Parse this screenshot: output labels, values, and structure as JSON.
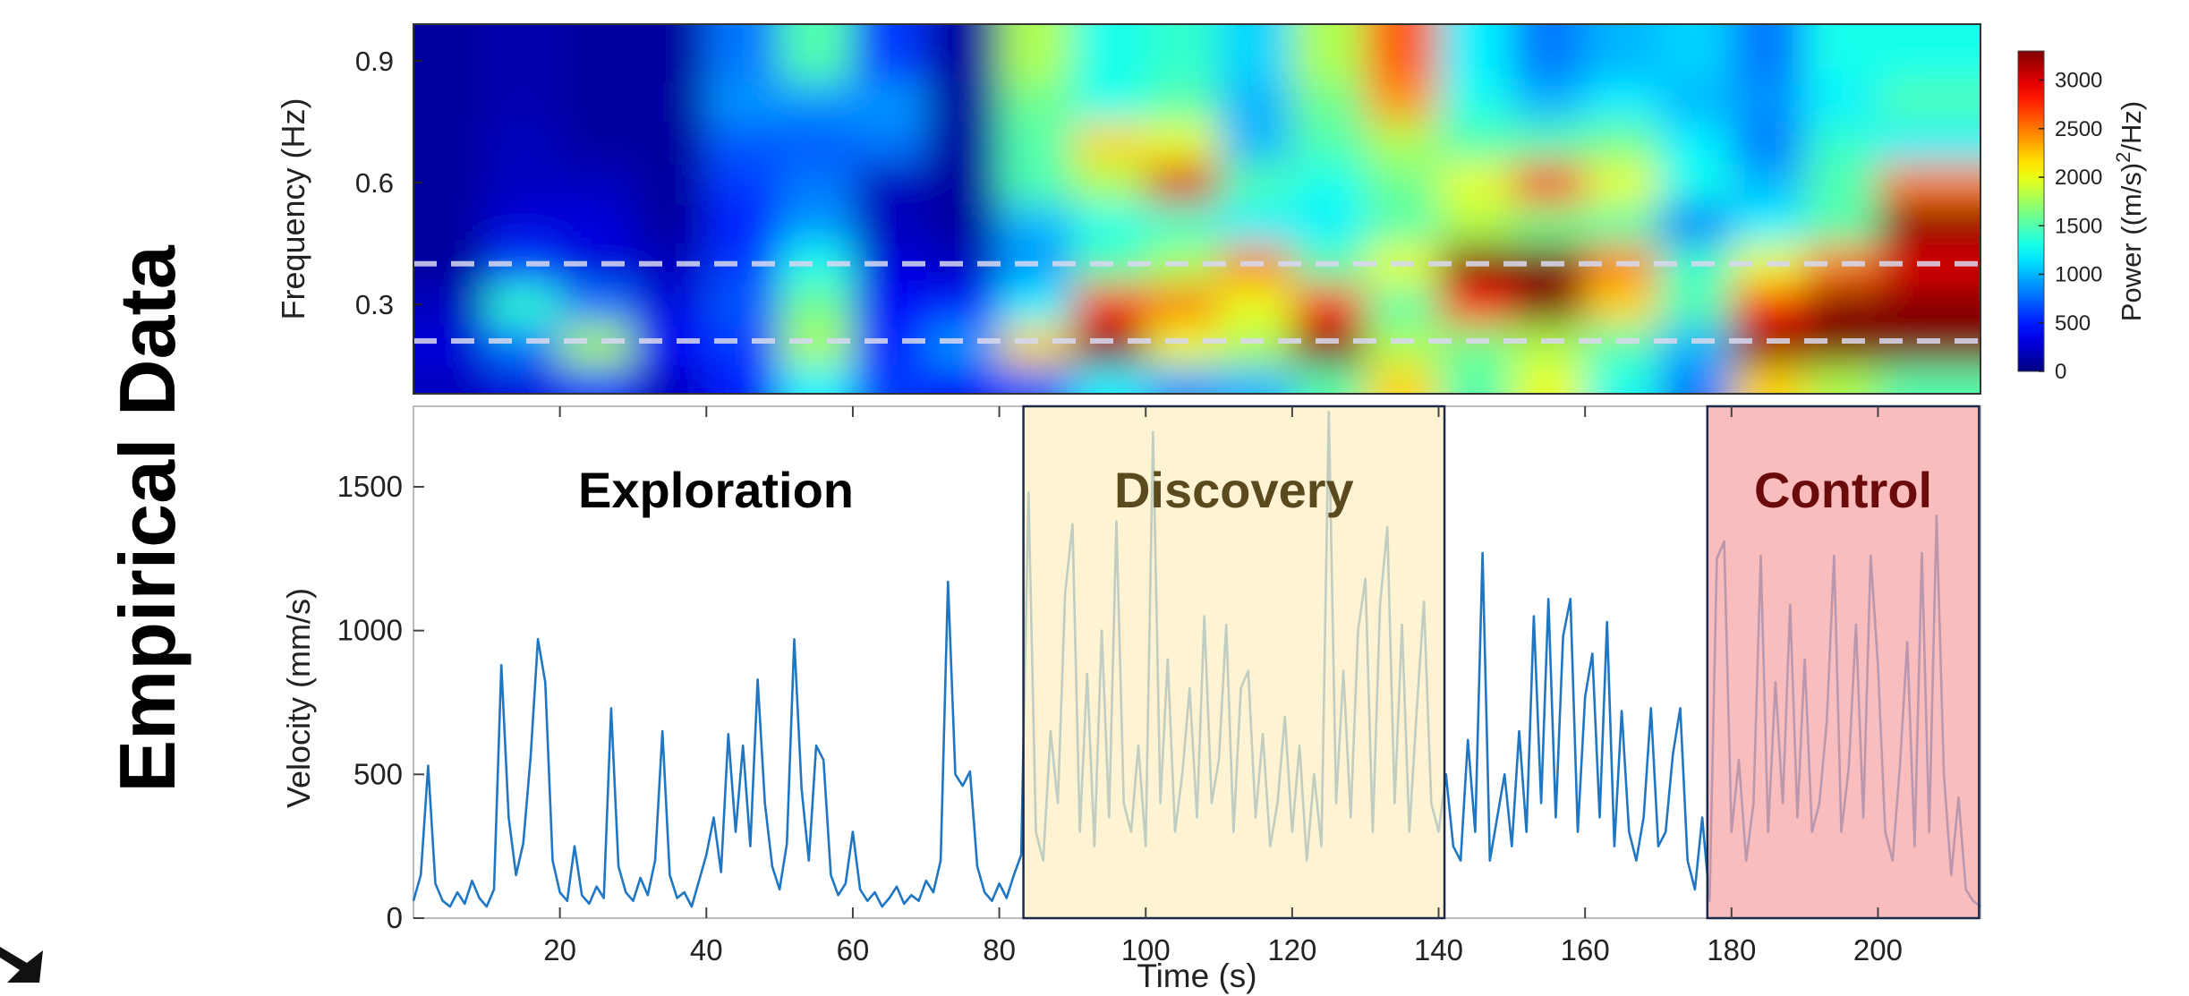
{
  "side_label": "Empirical Data",
  "chart_data": [
    {
      "type": "heatmap",
      "y_label": "Frequency (Hz)",
      "x": [
        5,
        15,
        25,
        35,
        45,
        55,
        65,
        75,
        85,
        95,
        105,
        115,
        125,
        135,
        145,
        155,
        165,
        175,
        185,
        195,
        205
      ],
      "y": [
        0.1,
        0.2,
        0.3,
        0.4,
        0.5,
        0.6,
        0.7,
        0.8,
        0.9
      ],
      "z": [
        [
          200,
          300,
          600,
          200,
          500,
          1200,
          600,
          400,
          700,
          1200,
          900,
          1000,
          1500,
          2200,
          1500,
          2000,
          1300,
          800,
          2200,
          1800,
          1500
        ],
        [
          300,
          800,
          1800,
          400,
          600,
          1800,
          500,
          900,
          2200,
          3300,
          2000,
          1800,
          3300,
          1800,
          1600,
          1800,
          1500,
          1000,
          3300,
          3300,
          3300
        ],
        [
          200,
          1400,
          800,
          300,
          700,
          1600,
          400,
          500,
          1200,
          2800,
          2500,
          2000,
          2800,
          1500,
          2800,
          3300,
          2200,
          1500,
          2800,
          3300,
          3300
        ],
        [
          100,
          600,
          300,
          200,
          600,
          1300,
          300,
          200,
          900,
          1500,
          1800,
          2500,
          1500,
          2000,
          3300,
          3300,
          2500,
          1400,
          2000,
          2500,
          3000
        ],
        [
          100,
          300,
          300,
          100,
          500,
          900,
          200,
          100,
          1000,
          1300,
          1400,
          1200,
          1200,
          1500,
          1800,
          1600,
          1500,
          800,
          1200,
          1500,
          3300
        ],
        [
          100,
          200,
          200,
          100,
          600,
          800,
          200,
          100,
          1500,
          1800,
          3000,
          1500,
          1300,
          1600,
          2000,
          2800,
          2000,
          1300,
          1000,
          1500,
          2500
        ],
        [
          100,
          200,
          100,
          100,
          700,
          700,
          800,
          100,
          1500,
          2200,
          2000,
          1000,
          1500,
          1800,
          1500,
          1500,
          1600,
          1200,
          800,
          1400,
          1200
        ],
        [
          100,
          150,
          100,
          100,
          900,
          900,
          900,
          100,
          1600,
          1300,
          1500,
          1000,
          1600,
          2400,
          1300,
          1000,
          1200,
          1000,
          900,
          1200,
          1500
        ],
        [
          100,
          150,
          100,
          100,
          800,
          1500,
          600,
          100,
          1800,
          1300,
          1400,
          1100,
          1800,
          2600,
          1200,
          800,
          1000,
          1100,
          800,
          1300,
          1300
        ]
      ],
      "xlim": [
        0,
        214
      ],
      "ylim": [
        0.08,
        0.99
      ],
      "yticks": [
        0.3,
        0.6,
        0.9
      ],
      "hlines": [
        0.4,
        0.21
      ],
      "colormap": "jet",
      "clim": [
        0,
        3300
      ],
      "cticks": [
        0,
        500,
        1000,
        1500,
        2000,
        2500,
        3000
      ],
      "colorbar_label": [
        "Power ((m/s)",
        "2",
        "/Hz)"
      ]
    },
    {
      "type": "line",
      "x_label": "Time (s)",
      "y_label": "Velocity (mm/s)",
      "x": [
        0,
        1,
        2,
        3,
        4,
        5,
        6,
        7,
        8,
        9,
        10,
        11,
        12,
        13,
        14,
        15,
        16,
        17,
        18,
        19,
        20,
        21,
        22,
        23,
        24,
        25,
        26,
        27,
        28,
        29,
        30,
        31,
        32,
        33,
        34,
        35,
        36,
        37,
        38,
        39,
        40,
        41,
        42,
        43,
        44,
        45,
        46,
        47,
        48,
        49,
        50,
        51,
        52,
        53,
        54,
        55,
        56,
        57,
        58,
        59,
        60,
        61,
        62,
        63,
        64,
        65,
        66,
        67,
        68,
        69,
        70,
        71,
        72,
        73,
        74,
        75,
        76,
        77,
        78,
        79,
        80,
        81,
        82,
        83,
        84,
        85,
        86,
        87,
        88,
        89,
        90,
        91,
        92,
        93,
        94,
        95,
        96,
        97,
        98,
        99,
        100,
        101,
        102,
        103,
        104,
        105,
        106,
        107,
        108,
        109,
        110,
        111,
        112,
        113,
        114,
        115,
        116,
        117,
        118,
        119,
        120,
        121,
        122,
        123,
        124,
        125,
        126,
        127,
        128,
        129,
        130,
        131,
        132,
        133,
        134,
        135,
        136,
        137,
        138,
        139,
        140,
        141,
        142,
        143,
        144,
        145,
        146,
        147,
        148,
        149,
        150,
        151,
        152,
        153,
        154,
        155,
        156,
        157,
        158,
        159,
        160,
        161,
        162,
        163,
        164,
        165,
        166,
        167,
        168,
        169,
        170,
        171,
        172,
        173,
        174,
        175,
        176,
        177,
        178,
        179,
        180,
        181,
        182,
        183,
        184,
        185,
        186,
        187,
        188,
        189,
        190,
        191,
        192,
        193,
        194,
        195,
        196,
        197,
        198,
        199,
        200,
        201,
        202,
        203,
        204,
        205,
        206,
        207,
        208,
        209,
        210,
        211,
        212,
        213,
        214
      ],
      "series": [
        {
          "color": "#1f77c4",
          "values": [
            60,
            150,
            530,
            120,
            60,
            40,
            90,
            50,
            130,
            70,
            40,
            100,
            880,
            350,
            150,
            260,
            560,
            970,
            820,
            200,
            90,
            60,
            250,
            80,
            50,
            110,
            70,
            730,
            180,
            90,
            60,
            140,
            80,
            200,
            650,
            150,
            70,
            90,
            40,
            130,
            220,
            350,
            160,
            640,
            300,
            600,
            250,
            830,
            400,
            180,
            100,
            260,
            970,
            450,
            200,
            600,
            550,
            150,
            80,
            120,
            300,
            100,
            60,
            90,
            40,
            70,
            110,
            50,
            80,
            60,
            130,
            90,
            200,
            1170,
            500,
            460,
            510,
            180,
            90,
            60,
            120,
            70,
            150,
            220,
            1480,
            300,
            200,
            650,
            400,
            1130,
            1370,
            300,
            850,
            250,
            1000,
            350,
            1380,
            400,
            300,
            600,
            250,
            1690,
            400,
            900,
            300,
            500,
            800,
            350,
            1050,
            400,
            550,
            1020,
            300,
            800,
            860,
            350,
            640,
            250,
            400,
            700,
            300,
            600,
            200,
            500,
            250,
            1760,
            400,
            860,
            350,
            1000,
            1180,
            300,
            1090,
            1360,
            400,
            1020,
            300,
            720,
            1100,
            400,
            300,
            500,
            250,
            200,
            620,
            300,
            1270,
            200,
            350,
            500,
            250,
            650,
            300,
            1050,
            400,
            1110,
            350,
            980,
            1110,
            300,
            770,
            920,
            350,
            1030,
            250,
            720,
            300,
            200,
            350,
            730,
            250,
            300,
            570,
            730,
            200,
            100,
            350,
            60,
            1250,
            1310,
            300,
            550,
            200,
            400,
            1260,
            300,
            820,
            400,
            1090,
            350,
            900,
            300,
            400,
            680,
            1260,
            300,
            520,
            1020,
            350,
            1260,
            880,
            300,
            200,
            530,
            960,
            250,
            1270,
            300,
            1400,
            500,
            150,
            420,
            100,
            60,
            40
          ]
        }
      ],
      "xlim": [
        0,
        214
      ],
      "ylim": [
        0,
        1780
      ],
      "xticks": [
        20,
        40,
        60,
        80,
        100,
        120,
        140,
        160,
        180,
        200
      ],
      "yticks": [
        0,
        500,
        1000,
        1500
      ],
      "regions": [
        {
          "label": "Exploration",
          "label_color": "#000000"
        },
        {
          "label": "Discovery",
          "start": 83.3,
          "end": 140.8,
          "color": "#fdeec0",
          "label_color": "#5a4a1e"
        },
        {
          "label": "Control",
          "start": 176.7,
          "end": 213.8,
          "color": "#f7a3a3",
          "label_color": "#6b0a0a"
        }
      ]
    }
  ]
}
